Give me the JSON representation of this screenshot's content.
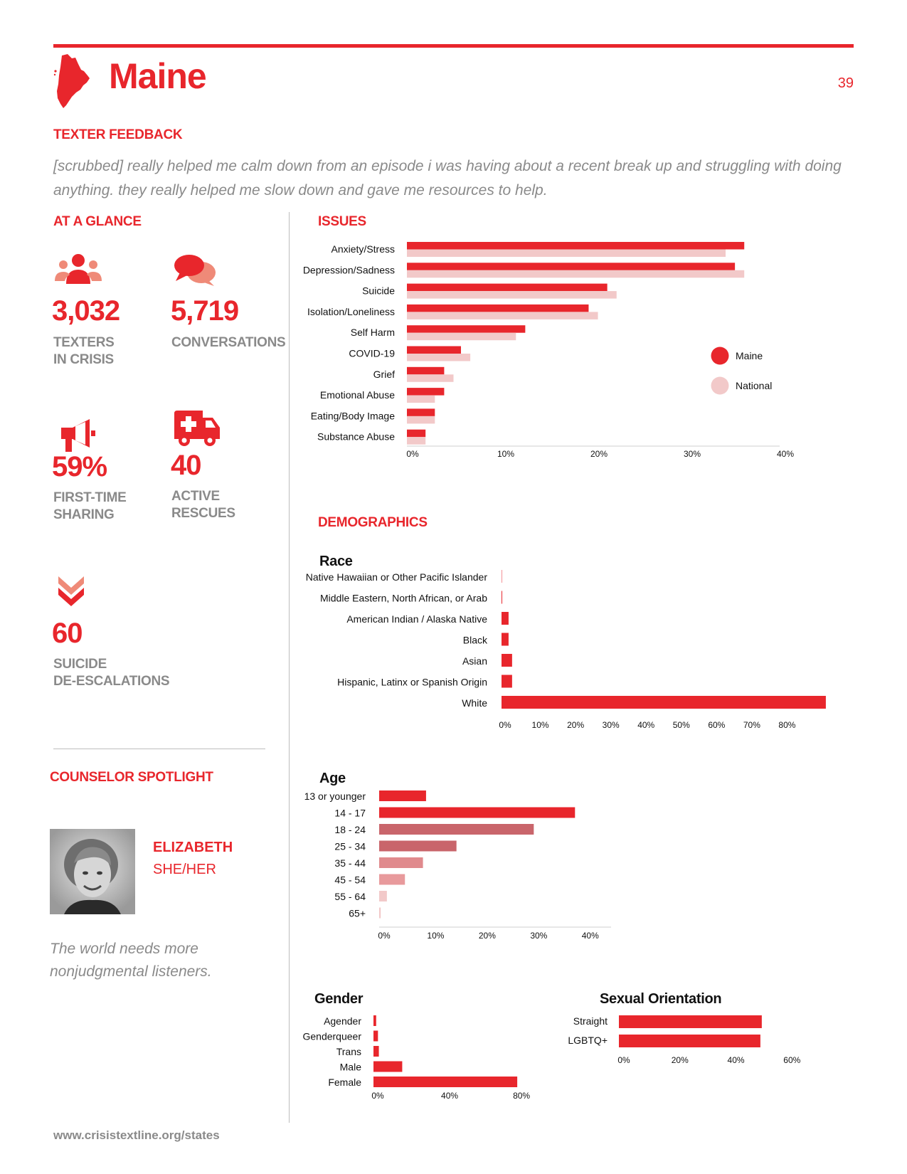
{
  "header": {
    "title": "Maine",
    "page_number": "39"
  },
  "feedback": {
    "heading": "TEXTER FEEDBACK",
    "quote": "[scrubbed] really helped me calm down from an episode i was having about a recent break up and struggling with doing anything. they really helped me slow down and gave me resources to help."
  },
  "glance": {
    "heading": "AT A GLANCE",
    "stats": [
      {
        "value": "3,032",
        "line1": "TEXTERS",
        "line2": "IN CRISIS",
        "icon": "people-icon"
      },
      {
        "value": "5,719",
        "line1": "CONVERSATIONS",
        "line2": "",
        "icon": "chat-bubbles-icon"
      },
      {
        "value": "59%",
        "line1": "FIRST-TIME",
        "line2": "SHARING",
        "icon": "megaphone-icon"
      },
      {
        "value": "40",
        "line1": "ACTIVE",
        "line2": "RESCUES",
        "icon": "ambulance-icon"
      },
      {
        "value": "60",
        "line1": "SUICIDE",
        "line2": "DE-ESCALATIONS",
        "icon": "double-chevron-down-icon"
      }
    ]
  },
  "spotlight": {
    "heading": "COUNSELOR SPOTLIGHT",
    "name": "ELIZABETH",
    "pronouns": "SHE/HER",
    "quote": "The world needs more nonjudgmental listeners."
  },
  "issues": {
    "heading": "ISSUES"
  },
  "demographics": {
    "heading": "DEMOGRAPHICS"
  },
  "footer": {
    "url": "www.crisistextline.org/states"
  },
  "colors": {
    "accent": "#e8262c",
    "national": "#f2c9c9",
    "grey_text": "#8a8a8a"
  },
  "chart_data": [
    {
      "id": "issues",
      "type": "bar",
      "orientation": "horizontal",
      "categories": [
        "Anxiety/Stress",
        "Depression/Sadness",
        "Suicide",
        "Isolation/Loneliness",
        "Self Harm",
        "COVID-19",
        "Grief",
        "Emotional Abuse",
        "Eating/Body Image",
        "Substance Abuse"
      ],
      "series": [
        {
          "name": "Maine",
          "color": "#e8262c",
          "values": [
            36.2,
            35.2,
            21.5,
            19.5,
            12.7,
            5.8,
            4.0,
            4.0,
            3.0,
            2.0
          ]
        },
        {
          "name": "National",
          "color": "#f2c9c9",
          "values": [
            34.2,
            36.2,
            22.5,
            20.5,
            11.7,
            6.8,
            5.0,
            3.0,
            3.0,
            2.0
          ]
        }
      ],
      "xlim": [
        0,
        40
      ],
      "ticks": [
        "0%",
        "10%",
        "20%",
        "30%",
        "40%"
      ],
      "legend": "right"
    },
    {
      "id": "race",
      "type": "bar",
      "orientation": "horizontal",
      "title": "Race",
      "categories": [
        "Native Hawaiian or Other Pacific Islander",
        "Middle Eastern, North African, or Arab",
        "American Indian / Alaska Native",
        "Black",
        "Asian",
        "Hispanic, Latinx or Spanish Origin",
        "White"
      ],
      "values": [
        0.1,
        0.2,
        2.0,
        2.0,
        3.0,
        3.0,
        92.0
      ],
      "xlim": [
        0,
        90
      ],
      "ticks": [
        "0%",
        "10%",
        "20%",
        "30%",
        "40%",
        "50%",
        "60%",
        "70%",
        "80%"
      ]
    },
    {
      "id": "age",
      "type": "bar",
      "orientation": "horizontal",
      "title": "Age",
      "categories": [
        "13 or younger",
        "14 - 17",
        "18 - 24",
        "25 - 34",
        "35 - 44",
        "45 - 54",
        "55 - 64",
        "65+"
      ],
      "values": [
        9.1,
        38.0,
        30.0,
        15.0,
        8.5,
        5.0,
        1.5,
        0.3
      ],
      "colors": [
        "#e8262c",
        "#e8262c",
        "#c9656b",
        "#c9656b",
        "#e08a8d",
        "#e89a9c",
        "#f2c9c9",
        "#f2c9c9"
      ],
      "xlim": [
        0,
        45
      ],
      "ticks": [
        "0%",
        "10%",
        "20%",
        "30%",
        "40%"
      ]
    },
    {
      "id": "gender",
      "type": "bar",
      "orientation": "horizontal",
      "title": "Gender",
      "categories": [
        "Agender",
        "Genderqueer",
        "Trans",
        "Male",
        "Female"
      ],
      "values": [
        1.5,
        2.5,
        3.0,
        16.0,
        80.0
      ],
      "xlim": [
        0,
        95
      ],
      "ticks": [
        "0%",
        "40%",
        "80%"
      ]
    },
    {
      "id": "orientation",
      "type": "bar",
      "orientation": "horizontal",
      "title": "Sexual Orientation",
      "categories": [
        "Straight",
        "LGBTQ+"
      ],
      "values": [
        51.0,
        50.5
      ],
      "xlim": [
        0,
        65
      ],
      "ticks": [
        "0%",
        "20%",
        "40%",
        "60%"
      ]
    }
  ]
}
